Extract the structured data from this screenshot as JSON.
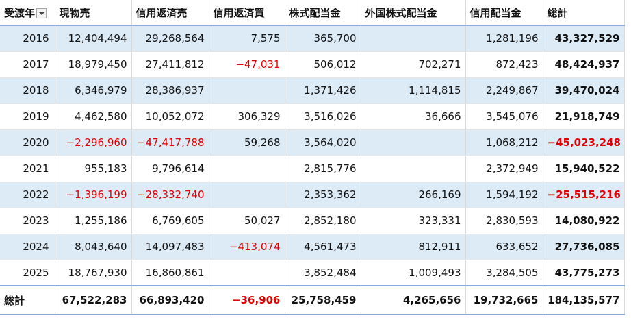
{
  "table": {
    "headers": [
      "受渡年",
      "現物売",
      "信用返済売",
      "信用返済買",
      "株式配当金",
      "外国株式配当金",
      "信用配当金",
      "総計"
    ],
    "rows": [
      [
        "2016",
        "12,404,494",
        "29,268,564",
        "7,575",
        "365,700",
        null,
        "1,281,196",
        "43,327,529"
      ],
      [
        "2017",
        "18,979,450",
        "27,411,812",
        "−47,031",
        "506,012",
        "702,271",
        "872,423",
        "48,424,937"
      ],
      [
        "2018",
        "6,346,979",
        "28,386,937",
        null,
        "1,371,426",
        "1,114,815",
        "2,249,867",
        "39,470,024"
      ],
      [
        "2019",
        "4,462,580",
        "10,052,072",
        "306,329",
        "3,516,026",
        "36,666",
        "3,545,076",
        "21,918,749"
      ],
      [
        "2020",
        "−2,296,960",
        "−47,417,788",
        "59,268",
        "3,564,020",
        null,
        "1,068,212",
        "−45,023,248"
      ],
      [
        "2021",
        "955,183",
        "9,796,614",
        null,
        "2,815,776",
        null,
        "2,372,949",
        "15,940,522"
      ],
      [
        "2022",
        "−1,396,199",
        "−28,332,740",
        null,
        "2,353,362",
        "266,169",
        "1,594,192",
        "−25,515,216"
      ],
      [
        "2023",
        "1,255,186",
        "6,769,605",
        "50,027",
        "2,852,180",
        "323,331",
        "2,830,593",
        "14,080,922"
      ],
      [
        "2024",
        "8,043,640",
        "14,097,483",
        "−413,074",
        "4,561,473",
        "812,911",
        "633,652",
        "27,736,085"
      ],
      [
        "2025",
        "18,767,930",
        "16,860,861",
        null,
        "3,852,484",
        "1,009,493",
        "3,284,505",
        "43,775,273"
      ]
    ],
    "total": [
      "総計",
      "67,522,283",
      "66,893,420",
      "−36,906",
      "25,758,459",
      "4,265,656",
      "19,732,665",
      "184,135,577"
    ]
  }
}
